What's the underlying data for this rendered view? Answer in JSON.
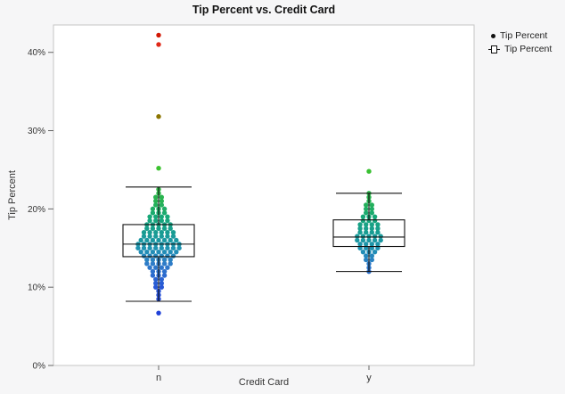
{
  "figure": {
    "background": "#f6f6f7",
    "plot_background": "#ffffff",
    "border_color": "#c6c6c6"
  },
  "legend": {
    "items": [
      {
        "label": "Tip Percent",
        "marker": "dot"
      },
      {
        "label": "Tip Percent",
        "marker": "box"
      }
    ]
  },
  "chart_data": {
    "type": "scatter",
    "subtype": "beeswarm-with-boxplot-overlay",
    "title": "Tip Percent vs. Credit Card",
    "xlabel": "Credit Card",
    "ylabel": "Tip Percent",
    "categories": [
      "n",
      "y"
    ],
    "ylim": [
      0,
      43.5
    ],
    "yticks": [
      0,
      10,
      20,
      30,
      40
    ],
    "ytick_labels": [
      "0%",
      "10%",
      "20%",
      "30%",
      "40%"
    ],
    "grid": false,
    "legend_position": "right",
    "series": [
      {
        "name": "n",
        "values": [
          6.7,
          8.5,
          9.0,
          9.5,
          10.0,
          10.0,
          10.5,
          10.5,
          11.0,
          11.0,
          11.5,
          11.5,
          11.5,
          12.0,
          12.0,
          12.0,
          12.5,
          12.5,
          12.5,
          12.5,
          13.0,
          13.0,
          13.0,
          13.0,
          13.0,
          13.5,
          13.5,
          13.5,
          13.5,
          13.5,
          14.0,
          14.0,
          14.0,
          14.0,
          14.0,
          14.0,
          14.5,
          14.5,
          14.5,
          14.5,
          14.5,
          14.5,
          14.5,
          15.0,
          15.0,
          15.0,
          15.0,
          15.0,
          15.0,
          15.0,
          15.0,
          15.5,
          15.5,
          15.5,
          15.5,
          15.5,
          15.5,
          15.5,
          15.5,
          16.0,
          16.0,
          16.0,
          16.0,
          16.0,
          16.0,
          16.0,
          16.5,
          16.5,
          16.5,
          16.5,
          16.5,
          16.5,
          17.0,
          17.0,
          17.0,
          17.0,
          17.0,
          17.0,
          17.5,
          17.5,
          17.5,
          17.5,
          17.5,
          18.0,
          18.0,
          18.0,
          18.0,
          18.0,
          18.5,
          18.5,
          18.5,
          18.5,
          19.0,
          19.0,
          19.0,
          19.0,
          19.5,
          19.5,
          19.5,
          20.0,
          20.0,
          20.0,
          20.5,
          20.5,
          21.0,
          21.0,
          21.5,
          21.5,
          22.0,
          22.5,
          25.2,
          31.8,
          41.0,
          42.2
        ]
      },
      {
        "name": "y",
        "values": [
          12.0,
          12.5,
          13.0,
          13.5,
          13.5,
          14.0,
          14.0,
          14.5,
          14.5,
          14.5,
          15.0,
          15.0,
          15.0,
          15.0,
          15.5,
          15.5,
          15.5,
          15.5,
          16.0,
          16.0,
          16.0,
          16.0,
          16.0,
          16.5,
          16.5,
          16.5,
          16.5,
          16.5,
          17.0,
          17.0,
          17.0,
          17.0,
          17.5,
          17.5,
          17.5,
          17.5,
          18.0,
          18.0,
          18.0,
          18.0,
          18.5,
          18.5,
          18.5,
          19.0,
          19.0,
          19.0,
          19.5,
          19.5,
          20.0,
          20.0,
          20.5,
          20.5,
          21.0,
          21.5,
          22.0,
          24.8
        ]
      }
    ],
    "boxplots": [
      {
        "category": "n",
        "low_whisker": 8.2,
        "q1": 13.9,
        "median": 15.5,
        "q3": 18.0,
        "high_whisker": 22.8
      },
      {
        "category": "y",
        "low_whisker": 12.0,
        "q1": 15.2,
        "median": 16.4,
        "q3": 18.6,
        "high_whisker": 22.0
      }
    ],
    "color_scale": [
      {
        "value": 6.5,
        "color": "#2040d8"
      },
      {
        "value": 10.0,
        "color": "#2857d6"
      },
      {
        "value": 13.0,
        "color": "#2e7cc8"
      },
      {
        "value": 15.0,
        "color": "#1e92b0"
      },
      {
        "value": 17.0,
        "color": "#189c92"
      },
      {
        "value": 19.0,
        "color": "#17a877"
      },
      {
        "value": 21.0,
        "color": "#28b253"
      },
      {
        "value": 25.5,
        "color": "#3cc32c"
      },
      {
        "value": 31.8,
        "color": "#8c7500"
      },
      {
        "value": 41.0,
        "color": "#e02918"
      },
      {
        "value": 42.5,
        "color": "#cf1400"
      }
    ]
  }
}
